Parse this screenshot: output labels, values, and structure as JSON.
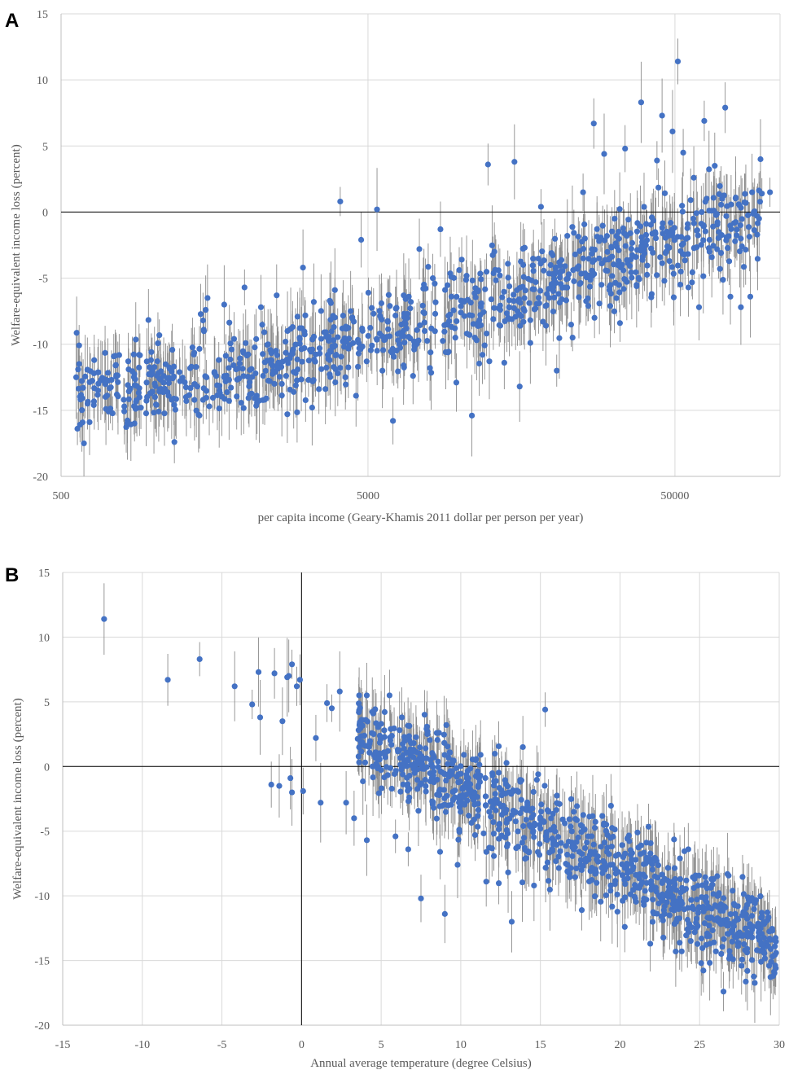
{
  "chart_data": [
    {
      "panel": "A",
      "type": "scatter",
      "title": "",
      "xlabel": "per capita income (Geary-Khamis 2011 dollar per person per year)",
      "ylabel": "Welfare-equivalent income loss (percent)",
      "xscale": "log",
      "xlim": [
        500,
        110000
      ],
      "ylim": [
        -20,
        15
      ],
      "xticks": [
        500,
        5000,
        50000
      ],
      "xtick_labels": [
        "500",
        "5000",
        "50000"
      ],
      "yticks": [
        -20,
        -15,
        -10,
        -5,
        0,
        5,
        10,
        15
      ],
      "ytick_labels": [
        "-20",
        "-15",
        "-10",
        "-5",
        "0",
        "5",
        "10",
        "15"
      ],
      "grid": true,
      "zero_line": true,
      "error_bars": true,
      "colors": {
        "marker": "#4472C4",
        "error_bar": "#8c8c8c",
        "grid": "#d9d9d9",
        "axis": "#000000"
      },
      "series": [
        {
          "points": [
            [
              560,
              -12.5
            ],
            [
              590,
              -13.3
            ],
            [
              610,
              -14.5
            ],
            [
              640,
              -12.2
            ],
            [
              660,
              -13.5
            ],
            [
              700,
              -14.9
            ],
            [
              730,
              -12.7
            ],
            [
              760,
              -13.8
            ],
            [
              800,
              -14.2
            ],
            [
              830,
              -11.9
            ],
            [
              870,
              -13.1
            ],
            [
              910,
              -14.8
            ],
            [
              950,
              -12.9
            ],
            [
              990,
              -13.6
            ],
            [
              1040,
              -15.1
            ],
            [
              1080,
              -12.4
            ],
            [
              1120,
              -13.9
            ],
            [
              1170,
              -17.4
            ],
            [
              1220,
              -12.8
            ],
            [
              1280,
              -14.3
            ],
            [
              1330,
              -11.7
            ],
            [
              1390,
              -13.2
            ],
            [
              1450,
              -8.2
            ],
            [
              1480,
              -7.4
            ],
            [
              1500,
              -6.5
            ],
            [
              1520,
              -14.7
            ],
            [
              1580,
              -12.1
            ],
            [
              1640,
              -13.5
            ],
            [
              1700,
              -7.0
            ],
            [
              1760,
              -11.8
            ],
            [
              1830,
              -9.6
            ],
            [
              1900,
              -12.6
            ],
            [
              1980,
              -5.7
            ],
            [
              2060,
              -13.8
            ],
            [
              2150,
              -12.2
            ],
            [
              2240,
              -7.2
            ],
            [
              2330,
              -14.1
            ],
            [
              2420,
              -11.5
            ],
            [
              2520,
              -6.3
            ],
            [
              2620,
              -13.0
            ],
            [
              2730,
              -15.3
            ],
            [
              2840,
              -8.7
            ],
            [
              2950,
              -11.9
            ],
            [
              3070,
              -4.2
            ],
            [
              3200,
              -12.7
            ],
            [
              3330,
              -6.8
            ],
            [
              3460,
              -13.4
            ],
            [
              3600,
              -9.1
            ],
            [
              3750,
              -11.2
            ],
            [
              3900,
              -5.9
            ],
            [
              4060,
              0.8
            ],
            [
              4220,
              -12.5
            ],
            [
              4390,
              -7.5
            ],
            [
              4570,
              -13.9
            ],
            [
              4750,
              -2.1
            ],
            [
              4950,
              -11.3
            ],
            [
              5150,
              -10.1
            ],
            [
              5350,
              0.2
            ],
            [
              5570,
              -12.0
            ],
            [
              5800,
              -8.3
            ],
            [
              6030,
              -15.8
            ],
            [
              6280,
              -9.7
            ],
            [
              6530,
              -11.6
            ],
            [
              6790,
              -6.4
            ],
            [
              7070,
              -10.4
            ],
            [
              7350,
              -2.8
            ],
            [
              7650,
              -9.0
            ],
            [
              7960,
              -11.8
            ],
            [
              8280,
              -7.7
            ],
            [
              8610,
              -1.3
            ],
            [
              8960,
              -10.6
            ],
            [
              9330,
              -4.9
            ],
            [
              9700,
              -12.9
            ],
            [
              10100,
              -3.6
            ],
            [
              10500,
              -9.2
            ],
            [
              10900,
              -15.4
            ],
            [
              11400,
              -6.0
            ],
            [
              11800,
              -10.8
            ],
            [
              12300,
              3.6
            ],
            [
              12800,
              -8.1
            ],
            [
              13300,
              -4.4
            ],
            [
              13900,
              -11.4
            ],
            [
              14400,
              -7.2
            ],
            [
              15000,
              3.8
            ],
            [
              15600,
              -13.2
            ],
            [
              16200,
              -2.7
            ],
            [
              16900,
              -9.9
            ],
            [
              17600,
              -5.3
            ],
            [
              18300,
              0.4
            ],
            [
              19000,
              -8.6
            ],
            [
              19800,
              -3.1
            ],
            [
              20600,
              -12.0
            ],
            [
              21400,
              -6.6
            ],
            [
              22300,
              -1.8
            ],
            [
              23200,
              -9.5
            ],
            [
              24100,
              -4.3
            ],
            [
              25100,
              1.5
            ],
            [
              26100,
              -7.1
            ],
            [
              27200,
              6.7
            ],
            [
              28300,
              -2.2
            ],
            [
              29400,
              4.4
            ],
            [
              30600,
              -5.9
            ],
            [
              31800,
              -0.5
            ],
            [
              33100,
              -8.4
            ],
            [
              34400,
              4.8
            ],
            [
              35800,
              -1.6
            ],
            [
              37300,
              -3.4
            ],
            [
              38800,
              8.3
            ],
            [
              40300,
              -0.9
            ],
            [
              42000,
              -6.2
            ],
            [
              43700,
              3.9
            ],
            [
              45400,
              7.3
            ],
            [
              47200,
              -2.6
            ],
            [
              49100,
              6.1
            ],
            [
              51100,
              11.4
            ],
            [
              53200,
              4.5
            ],
            [
              55300,
              -5.7
            ],
            [
              57600,
              2.6
            ],
            [
              59900,
              -7.2
            ],
            [
              62300,
              6.9
            ],
            [
              64800,
              -2.1
            ],
            [
              67400,
              3.5
            ],
            [
              70100,
              -4.3
            ],
            [
              72900,
              7.9
            ],
            [
              75800,
              -6.4
            ],
            [
              78900,
              1.1
            ],
            [
              82000,
              -7.2
            ],
            [
              88000,
              -6.4
            ],
            [
              95000,
              4.0
            ],
            [
              102000,
              1.5
            ],
            [
              96000,
              1.4
            ]
          ]
        }
      ]
    },
    {
      "panel": "B",
      "type": "scatter",
      "title": "",
      "xlabel": "Annual average temperature (degree Celsius)",
      "ylabel": "Welfare-equivalent income loss (percent)",
      "xlim": [
        -15,
        30
      ],
      "ylim": [
        -20,
        15
      ],
      "xticks": [
        -15,
        -10,
        -5,
        0,
        5,
        10,
        15,
        20,
        25,
        30
      ],
      "xtick_labels": [
        "-15",
        "-10",
        "-5",
        "0",
        "5",
        "10",
        "15",
        "20",
        "25",
        "30"
      ],
      "yticks": [
        -20,
        -15,
        -10,
        -5,
        0,
        5,
        10,
        15
      ],
      "ytick_labels": [
        "-20",
        "-15",
        "-10",
        "-5",
        "0",
        "5",
        "10",
        "15"
      ],
      "grid": true,
      "zero_line": true,
      "error_bars": true,
      "colors": {
        "marker": "#4472C4",
        "error_bar": "#8c8c8c",
        "grid": "#d9d9d9",
        "axis": "#000000"
      },
      "series": [
        {
          "points": [
            [
              -12.4,
              11.4
            ],
            [
              -8.4,
              6.7
            ],
            [
              -6.4,
              8.3
            ],
            [
              -4.2,
              6.2
            ],
            [
              -3.1,
              4.8
            ],
            [
              -2.7,
              7.3
            ],
            [
              -2.6,
              3.8
            ],
            [
              -1.7,
              7.2
            ],
            [
              -1.2,
              3.5
            ],
            [
              -0.9,
              6.9
            ],
            [
              -0.8,
              7.0
            ],
            [
              -0.6,
              7.9
            ],
            [
              -0.3,
              6.2
            ],
            [
              -0.1,
              6.7
            ],
            [
              -1.9,
              -1.4
            ],
            [
              -1.4,
              -1.5
            ],
            [
              -0.7,
              -0.9
            ],
            [
              -0.6,
              -2.0
            ],
            [
              0.1,
              -1.9
            ],
            [
              0.9,
              2.2
            ],
            [
              1.2,
              -2.8
            ],
            [
              1.6,
              4.9
            ],
            [
              1.9,
              4.5
            ],
            [
              2.4,
              5.8
            ],
            [
              2.8,
              -2.8
            ],
            [
              3.3,
              -4.0
            ],
            [
              3.6,
              4.2
            ],
            [
              4.0,
              1.6
            ],
            [
              4.1,
              -5.7
            ],
            [
              4.5,
              4.1
            ],
            [
              5.0,
              3.3
            ],
            [
              5.6,
              2.9
            ],
            [
              5.9,
              -5.4
            ],
            [
              6.3,
              3.8
            ],
            [
              6.7,
              -6.4
            ],
            [
              7.0,
              1.2
            ],
            [
              7.5,
              -10.2
            ],
            [
              7.9,
              2.5
            ],
            [
              8.3,
              -0.4
            ],
            [
              8.7,
              -6.6
            ],
            [
              9.0,
              -11.4
            ],
            [
              9.3,
              1.1
            ],
            [
              9.5,
              -2.6
            ],
            [
              9.8,
              -7.6
            ],
            [
              10.2,
              0.9
            ],
            [
              10.5,
              -3.8
            ],
            [
              10.9,
              -5.3
            ],
            [
              11.2,
              -1.2
            ],
            [
              11.6,
              -8.9
            ],
            [
              12.0,
              -0.7
            ],
            [
              12.4,
              -4.5
            ],
            [
              12.8,
              -2.1
            ],
            [
              13.2,
              -12.0
            ],
            [
              13.6,
              -6.2
            ],
            [
              13.9,
              1.5
            ],
            [
              14.3,
              -3.3
            ],
            [
              14.6,
              -9.2
            ],
            [
              15.0,
              -4.8
            ],
            [
              15.3,
              4.4
            ],
            [
              15.8,
              -6.0
            ],
            [
              16.2,
              -2.9
            ],
            [
              16.7,
              -7.6
            ],
            [
              17.1,
              -3.5
            ],
            [
              17.6,
              -11.1
            ],
            [
              18.0,
              -5.4
            ],
            [
              18.5,
              -8.2
            ],
            [
              19.0,
              -4.4
            ],
            [
              19.4,
              -9.6
            ],
            [
              19.9,
              -6.8
            ],
            [
              20.3,
              -12.4
            ],
            [
              20.7,
              -8.1
            ],
            [
              21.1,
              -5.1
            ],
            [
              21.5,
              -10.7
            ],
            [
              21.9,
              -13.7
            ],
            [
              22.3,
              -7.3
            ],
            [
              22.7,
              -11.9
            ],
            [
              23.1,
              -9.0
            ],
            [
              23.5,
              -14.3
            ],
            [
              23.9,
              -10.6
            ],
            [
              24.3,
              -12.8
            ],
            [
              24.7,
              -8.5
            ],
            [
              25.1,
              -15.2
            ],
            [
              25.5,
              -11.7
            ],
            [
              25.9,
              -13.6
            ],
            [
              26.2,
              -9.9
            ],
            [
              26.5,
              -17.4
            ],
            [
              26.8,
              -12.3
            ],
            [
              27.1,
              -14.9
            ],
            [
              27.4,
              -10.8
            ],
            [
              27.7,
              -13.1
            ],
            [
              28.0,
              -15.8
            ],
            [
              28.3,
              -12.6
            ],
            [
              28.6,
              -14.2
            ],
            [
              28.9,
              -11.3
            ],
            [
              29.2,
              -13.9
            ],
            [
              29.5,
              -15.1
            ],
            [
              29.8,
              -14.4
            ]
          ]
        }
      ]
    }
  ]
}
